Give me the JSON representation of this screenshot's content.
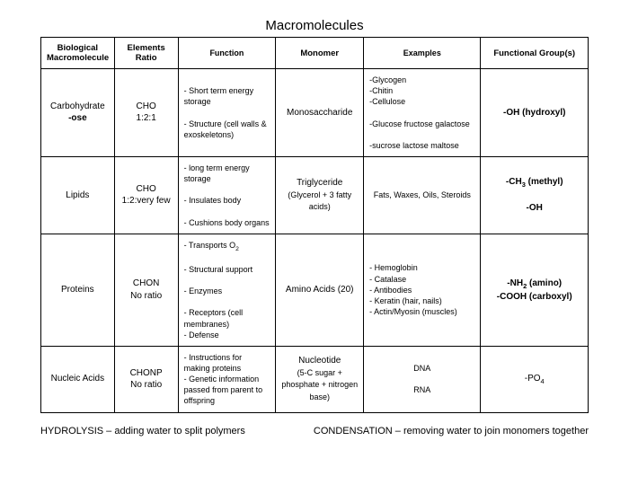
{
  "title": "Macromolecules",
  "columns": [
    "Biological Macromolecule",
    "Elements Ratio",
    "Function",
    "Monomer",
    "Examples",
    "Functional Group(s)"
  ],
  "rows": [
    {
      "macro_html": "Carbohydrate<br><b>-ose</b>",
      "ratio_html": "CHO<br>1:2:1",
      "func_html": "- Short term energy storage<br><br>- Structure (cell walls &amp; exoskeletons)",
      "monomer_html": "Monosaccharide",
      "examples_html": "-Glycogen<br>-Chitin<br>-Cellulose<br><br>-Glucose fructose galactose<br><br>-sucrose lactose maltose",
      "group_html": "<b>-OH (hydroxyl)</b>"
    },
    {
      "macro_html": "Lipids",
      "ratio_html": "CHO<br>1:2:very few",
      "func_html": "- long term energy storage<br><br>- Insulates body<br><br>- Cushions body organs",
      "monomer_html": "Triglyceride<br><span class='small'>(Glycerol + 3 fatty acids)</span>",
      "examples_html": "Fats, Waxes, Oils, Steroids",
      "examples_center": true,
      "group_html": "<b>-CH<sub>3</sub> (methyl)</b><br><br><b>-OH</b>"
    },
    {
      "macro_html": "Proteins",
      "ratio_html": "CHON<br>No ratio",
      "func_html": "- Transports O<sub>2</sub><br><br>- Structural support<br><br>- Enzymes<br><br>- Receptors (cell membranes)<br>- Defense",
      "monomer_html": "Amino Acids (20)",
      "examples_html": "- Hemoglobin<br>- Catalase<br>- Antibodies<br>- Keratin (hair, nails)<br>- Actin/Myosin (muscles)",
      "group_html": "<b>-NH<sub>2</sub> (amino)<br>-COOH (carboxyl)</b>"
    },
    {
      "macro_html": "Nucleic Acids",
      "ratio_html": "CHONP<br>No ratio",
      "func_html": "- Instructions for making proteins<br>- Genetic information passed from parent to offspring",
      "monomer_html": "Nucleotide<br><span class='small'>(5-C sugar + phosphate + nitrogen base)</span>",
      "examples_html": "DNA<br><br>RNA",
      "examples_center": true,
      "group_html": "-PO<sub>4</sub>"
    }
  ],
  "footer_left": "HYDROLYSIS – adding water to split polymers",
  "footer_right": "CONDENSATION – removing water to join monomers together"
}
